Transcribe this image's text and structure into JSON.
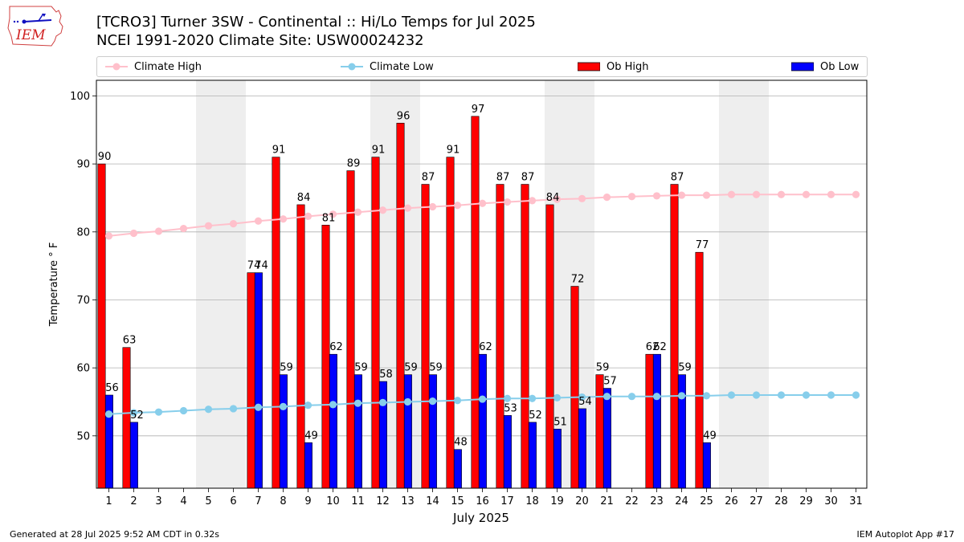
{
  "title_line1": "[TCRO3] Turner 3SW - Continental :: Hi/Lo Temps for Jul 2025",
  "title_line2": "NCEI 1991-2020 Climate Site: USW00024232",
  "logo_text": "IEM",
  "footer_left": "Generated at 28 Jul 2025 9:52 AM CDT in 0.32s",
  "footer_right": "IEM Autoplot App #17",
  "colors": {
    "ob_high": "#ff0000",
    "ob_low": "#0000ff",
    "climate_high": "#ffc0cb",
    "climate_low": "#87ceeb",
    "weekend_shade": "#eeeeee",
    "grid": "#b0b0b0"
  },
  "chart_data": {
    "type": "bar",
    "xlabel": "July 2025",
    "ylabel": "Temperature ° F",
    "ylim": [
      42.3,
      102.3
    ],
    "yticks": [
      50,
      60,
      70,
      80,
      90,
      100
    ],
    "grid": "horizontal",
    "legend_position": "top",
    "weekend_shading": [
      [
        5,
        6
      ],
      [
        12,
        13
      ],
      [
        19,
        20
      ],
      [
        26,
        27
      ]
    ],
    "categories": [
      "1",
      "2",
      "3",
      "4",
      "5",
      "6",
      "7",
      "8",
      "9",
      "10",
      "11",
      "12",
      "13",
      "14",
      "15",
      "16",
      "17",
      "18",
      "19",
      "20",
      "21",
      "22",
      "23",
      "24",
      "25",
      "26",
      "27",
      "28",
      "29",
      "30",
      "31"
    ],
    "series": [
      {
        "name": "Climate High",
        "kind": "line",
        "values": [
          79.4,
          79.8,
          80.1,
          80.5,
          80.9,
          81.2,
          81.6,
          81.9,
          82.3,
          82.6,
          82.9,
          83.2,
          83.5,
          83.7,
          83.9,
          84.2,
          84.4,
          84.6,
          84.8,
          84.9,
          85.1,
          85.2,
          85.3,
          85.4,
          85.4,
          85.5,
          85.5,
          85.5,
          85.5,
          85.5,
          85.5
        ]
      },
      {
        "name": "Climate Low",
        "kind": "line",
        "values": [
          53.2,
          53.4,
          53.5,
          53.7,
          53.9,
          54.0,
          54.2,
          54.3,
          54.5,
          54.6,
          54.8,
          54.9,
          55.0,
          55.1,
          55.2,
          55.4,
          55.5,
          55.5,
          55.6,
          55.7,
          55.8,
          55.8,
          55.8,
          55.9,
          55.9,
          56.0,
          56.0,
          56.0,
          56.0,
          56.0,
          56.0
        ]
      },
      {
        "name": "Ob High",
        "kind": "bar",
        "values": [
          90,
          63,
          null,
          null,
          null,
          null,
          74,
          91,
          84,
          81,
          89,
          91,
          96,
          87,
          91,
          97,
          87,
          87,
          84,
          72,
          59,
          null,
          62,
          87,
          77,
          null,
          null,
          null,
          null,
          null,
          null
        ],
        "labels": [
          "90",
          "63",
          "",
          "",
          "",
          "",
          "74",
          "91",
          "84",
          "81",
          "89",
          "91",
          "96",
          "87",
          "91",
          "97",
          "87",
          "87",
          "84",
          "72",
          "59",
          "",
          "62",
          "87",
          "77",
          "",
          "",
          "",
          "",
          "",
          ""
        ]
      },
      {
        "name": "Ob Low",
        "kind": "bar",
        "values": [
          56,
          52,
          null,
          null,
          null,
          null,
          74,
          59,
          49,
          62,
          59,
          58,
          59,
          59,
          48,
          62,
          53,
          52,
          51,
          54,
          57,
          null,
          62,
          59,
          49,
          null,
          null,
          null,
          null,
          null,
          null
        ],
        "labels": [
          "56",
          "52",
          "",
          "",
          "",
          "",
          "74",
          "59",
          "49",
          "62",
          "59",
          "58",
          "59",
          "59",
          "48",
          "62",
          "53",
          "52",
          "51",
          "54",
          "57",
          "",
          "62",
          "59",
          "49",
          "",
          "",
          "",
          "",
          "",
          ""
        ]
      }
    ]
  }
}
